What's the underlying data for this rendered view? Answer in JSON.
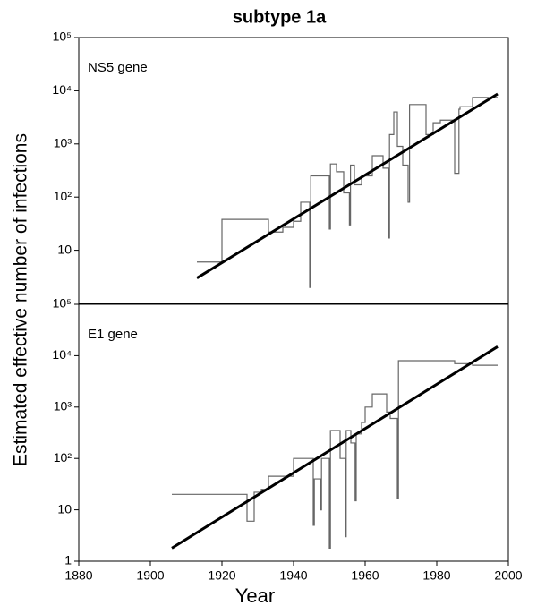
{
  "title": "subtype 1a",
  "ylabel": "Estimated effective number of infections",
  "xlabel": "Year",
  "chart_data": [
    {
      "type": "step-line",
      "label": "NS5 gene",
      "log": true,
      "xlim": [
        1880,
        2000
      ],
      "ylim": [
        1,
        100000
      ],
      "yticks": [
        {
          "value": 100000,
          "label": "10⁵"
        },
        {
          "value": 10000,
          "label": "10⁴"
        },
        {
          "value": 1000,
          "label": "10³"
        },
        {
          "value": 100,
          "label": "10²"
        },
        10
      ],
      "series": [
        {
          "color": "#666666",
          "x": [
            1913,
            1920,
            1933,
            1937,
            1940,
            1942,
            1944.5,
            1944.8,
            1950,
            1950.3,
            1952,
            1954,
            1955.6,
            1955.9,
            1957,
            1959,
            1962,
            1965,
            1966.5,
            1966.8,
            1968,
            1969,
            1970.5,
            1972,
            1972.4,
            1977,
            1979,
            1981,
            1985,
            1986.2,
            1986.5,
            1990,
            1993,
            1997
          ],
          "values": [
            6,
            38,
            22,
            27,
            35,
            80,
            2,
            250,
            25,
            420,
            300,
            120,
            30,
            400,
            170,
            250,
            600,
            350,
            17,
            1500,
            4000,
            900,
            400,
            80,
            5500,
            1500,
            2500,
            2800,
            280,
            4500,
            5000,
            7500,
            7500,
            7500
          ]
        },
        {
          "color": "#000000",
          "x": [
            1913,
            1997
          ],
          "values": [
            3,
            8700
          ]
        }
      ]
    },
    {
      "type": "step-line",
      "label": "E1 gene",
      "log": true,
      "xlim": [
        1880,
        2000
      ],
      "ylim": [
        1,
        100000
      ],
      "xticks": [
        1880,
        1900,
        1920,
        1940,
        1960,
        1980,
        2000
      ],
      "yticks": [
        {
          "value": 100000,
          "label": "10⁵"
        },
        {
          "value": 10000,
          "label": "10⁴"
        },
        {
          "value": 1000,
          "label": "10³"
        },
        {
          "value": 100,
          "label": "10²"
        },
        10,
        1
      ],
      "series": [
        {
          "color": "#666666",
          "x": [
            1906,
            1927,
            1929,
            1931,
            1933,
            1940,
            1945.5,
            1945.8,
            1947.5,
            1947.8,
            1950,
            1950.3,
            1953,
            1954.4,
            1954.7,
            1956,
            1957.2,
            1957.5,
            1959,
            1960,
            1962,
            1966,
            1967,
            1969,
            1969.3,
            1985,
            1990,
            1997
          ],
          "values": [
            20,
            6,
            22,
            25,
            45,
            100,
            5,
            40,
            10,
            100,
            1.8,
            350,
            100,
            3,
            350,
            200,
            15,
            300,
            500,
            1000,
            1800,
            800,
            600,
            17,
            8000,
            7000,
            6500,
            6500
          ]
        },
        {
          "color": "#000000",
          "x": [
            1906,
            1997
          ],
          "values": [
            1.8,
            15000
          ]
        }
      ]
    }
  ]
}
